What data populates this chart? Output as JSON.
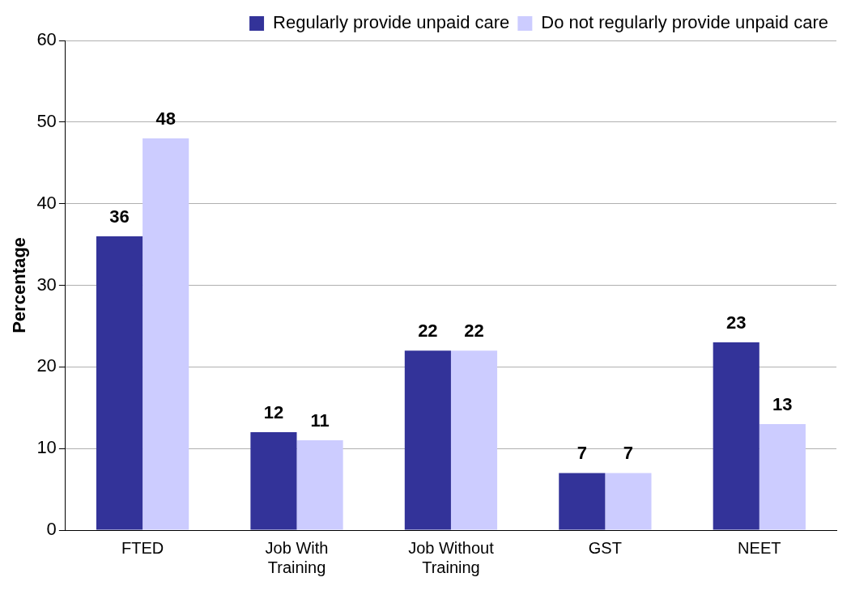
{
  "chart_data": {
    "type": "bar",
    "ylabel": "Percentage",
    "categories": [
      "FTED",
      "Job With Training",
      "Job Without Training",
      "GST",
      "NEET"
    ],
    "series": [
      {
        "name": "Regularly provide unpaid care",
        "color": "#333399",
        "values": [
          36,
          12,
          22,
          7,
          23
        ]
      },
      {
        "name": "Do not regularly provide unpaid care",
        "color": "#ccccff",
        "values": [
          48,
          11,
          22,
          7,
          13
        ]
      }
    ],
    "ylim": [
      0,
      60
    ],
    "yticks": [
      0,
      10,
      20,
      30,
      40,
      50,
      60
    ],
    "grid": "y",
    "legend": "top right",
    "data_labels": true
  }
}
